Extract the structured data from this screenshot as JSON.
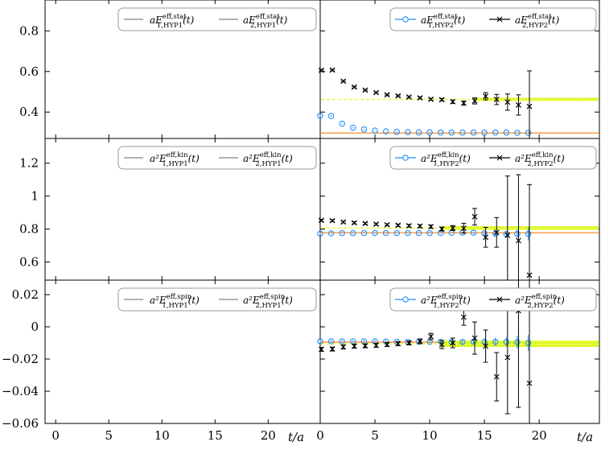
{
  "chart_data": {
    "type": "scatter",
    "shared_x_ticks": [
      0,
      5,
      10,
      15,
      20
    ],
    "xlabel": "t/a",
    "xlim_left": [
      -1,
      24.9
    ],
    "xlim_right": [
      0,
      25.5
    ],
    "rows": [
      {
        "id": "stat",
        "ylim": [
          0.27,
          0.96
        ],
        "yticks": [
          0.4,
          0.6,
          0.8
        ],
        "ytick_labels": [
          "0.4",
          "0.6",
          "0.8"
        ],
        "legend_left": [
          {
            "prefix": "aE",
            "sup": "eff,stat",
            "sub": "1,HYP1",
            "suffix": "(t)"
          },
          {
            "prefix": "aE",
            "sup": "eff,stat",
            "sub": "2,HYP1",
            "suffix": "(t)"
          }
        ],
        "legend_right": [
          {
            "prefix": "aE",
            "sup": "eff,stat",
            "sub": "1,HYP2",
            "suffix": "(t)"
          },
          {
            "prefix": "aE",
            "sup": "eff,stat",
            "sub": "2,HYP2",
            "suffix": "(t)"
          }
        ],
        "fit1": {
          "value": 0.297,
          "x_from": 0
        },
        "fit2": {
          "value": 0.462,
          "band_lo": 0.455,
          "band_hi": 0.47,
          "x_from": 14
        },
        "series1": {
          "x": [
            0,
            1,
            2,
            3,
            4,
            5,
            6,
            7,
            8,
            9,
            10,
            11,
            12,
            13,
            14,
            15,
            16,
            17,
            18,
            19
          ],
          "y": [
            0.382,
            0.381,
            0.343,
            0.323,
            0.315,
            0.309,
            0.305,
            0.303,
            0.301,
            0.3,
            0.3,
            0.299,
            0.299,
            0.299,
            0.299,
            0.299,
            0.299,
            0.299,
            0.298,
            0.298
          ],
          "err": [
            0.004,
            0.004,
            0.003,
            0.003,
            0.003,
            0.002,
            0.002,
            0.002,
            0.002,
            0.002,
            0.002,
            0.002,
            0.002,
            0.002,
            0.002,
            0.002,
            0.002,
            0.002,
            0.002,
            0.003
          ]
        },
        "series2": {
          "x": [
            0,
            1,
            2,
            3,
            4,
            5,
            6,
            7,
            8,
            9,
            10,
            11,
            12,
            13,
            14,
            15,
            16,
            17,
            18,
            19
          ],
          "y": [
            0.606,
            0.607,
            0.552,
            0.523,
            0.508,
            0.496,
            0.485,
            0.48,
            0.474,
            0.47,
            0.463,
            0.461,
            0.451,
            0.444,
            0.455,
            0.478,
            0.462,
            0.449,
            0.435,
            0.428
          ],
          "err": [
            0.004,
            0.004,
            0.004,
            0.004,
            0.004,
            0.004,
            0.004,
            0.004,
            0.005,
            0.005,
            0.005,
            0.006,
            0.008,
            0.01,
            0.015,
            0.018,
            0.025,
            0.04,
            0.05,
            0.175
          ]
        }
      },
      {
        "id": "kin",
        "ylim": [
          0.49,
          1.35
        ],
        "yticks": [
          0.6,
          0.8,
          1.0,
          1.2
        ],
        "ytick_labels": [
          "0.6",
          "0.8",
          "1",
          "1.2"
        ],
        "legend_left": [
          {
            "prefix": "a²E",
            "sup": "eff,kin",
            "sub": "1,HYP1",
            "suffix": "(t)"
          },
          {
            "prefix": "a²E",
            "sup": "eff,kin",
            "sub": "2,HYP1",
            "suffix": "(t)"
          }
        ],
        "legend_right": [
          {
            "prefix": "a²E",
            "sup": "eff,kin",
            "sub": "1,HYP2",
            "suffix": "(t)"
          },
          {
            "prefix": "a²E",
            "sup": "eff,kin",
            "sub": "2,HYP2",
            "suffix": "(t)"
          }
        ],
        "fit1": {
          "value": 0.778,
          "x_from": 0
        },
        "fit2": {
          "value": 0.806,
          "band_lo": 0.795,
          "band_hi": 0.817,
          "x_from": 11
        },
        "series1": {
          "x": [
            0,
            1,
            2,
            3,
            4,
            5,
            6,
            7,
            8,
            9,
            10,
            11,
            12,
            13,
            14,
            15,
            16,
            17,
            18,
            19
          ],
          "y": [
            0.772,
            0.774,
            0.775,
            0.775,
            0.776,
            0.776,
            0.776,
            0.776,
            0.776,
            0.776,
            0.776,
            0.777,
            0.777,
            0.778,
            0.778,
            0.774,
            0.772,
            0.77,
            0.771,
            0.771
          ],
          "err": [
            0.004,
            0.004,
            0.004,
            0.004,
            0.004,
            0.004,
            0.004,
            0.004,
            0.004,
            0.004,
            0.004,
            0.004,
            0.004,
            0.005,
            0.006,
            0.008,
            0.012,
            0.02,
            0.025,
            0.04
          ]
        },
        "series2": {
          "x": [
            0,
            1,
            2,
            3,
            4,
            5,
            6,
            7,
            8,
            9,
            10,
            11,
            12,
            13,
            14,
            15,
            16,
            17,
            18,
            19
          ],
          "y": [
            0.853,
            0.851,
            0.843,
            0.838,
            0.834,
            0.83,
            0.826,
            0.823,
            0.82,
            0.818,
            0.815,
            0.8,
            0.806,
            0.805,
            0.875,
            0.75,
            0.78,
            0.762,
            0.73,
            0.52
          ],
          "err": [
            0.006,
            0.006,
            0.006,
            0.006,
            0.006,
            0.006,
            0.006,
            0.007,
            0.008,
            0.009,
            0.01,
            0.012,
            0.015,
            0.03,
            0.05,
            0.06,
            0.09,
            0.36,
            0.4,
            0.55
          ]
        }
      },
      {
        "id": "spin",
        "ylim": [
          -0.06,
          0.029
        ],
        "yticks": [
          -0.06,
          -0.04,
          -0.02,
          0.0,
          0.02
        ],
        "ytick_labels": [
          "−0.06",
          "−0.04",
          "−0.02",
          "0",
          "0.02"
        ],
        "legend_left": [
          {
            "prefix": "a²E",
            "sup": "eff,spin",
            "sub": "1,HYP1",
            "suffix": "(t)"
          },
          {
            "prefix": "a²E",
            "sup": "eff,spin",
            "sub": "2,HYP1",
            "suffix": "(t)"
          }
        ],
        "legend_right": [
          {
            "prefix": "a²E",
            "sup": "eff,spin",
            "sub": "1,HYP2",
            "suffix": "(t)"
          },
          {
            "prefix": "a²E",
            "sup": "eff,spin",
            "sub": "2,HYP2",
            "suffix": "(t)"
          }
        ],
        "fit1": {
          "value": -0.0095,
          "x_from": 0
        },
        "fit2": {
          "value": -0.0105,
          "band_lo": -0.0125,
          "band_hi": -0.0085,
          "x_from": 11
        },
        "series1": {
          "x": [
            0,
            1,
            2,
            3,
            4,
            5,
            6,
            7,
            8,
            9,
            10,
            11,
            12,
            13,
            14,
            15,
            16,
            17,
            18,
            19
          ],
          "y": [
            -0.009,
            -0.009,
            -0.009,
            -0.009,
            -0.009,
            -0.009,
            -0.0092,
            -0.0093,
            -0.0093,
            -0.0092,
            -0.0093,
            -0.0093,
            -0.0093,
            -0.0094,
            -0.0092,
            -0.0093,
            -0.0093,
            -0.0094,
            -0.0095,
            -0.01
          ],
          "err": [
            0.0008,
            0.0008,
            0.0008,
            0.0008,
            0.0008,
            0.0008,
            0.0008,
            0.0008,
            0.0008,
            0.0008,
            0.0008,
            0.001,
            0.0012,
            0.0015,
            0.0018,
            0.002,
            0.0025,
            0.003,
            0.004,
            0.005
          ]
        },
        "series2": {
          "x": [
            0,
            1,
            2,
            3,
            4,
            5,
            6,
            7,
            8,
            9,
            10,
            11,
            12,
            13,
            14,
            15,
            16,
            17,
            18,
            19
          ],
          "y": [
            -0.014,
            -0.0138,
            -0.0125,
            -0.012,
            -0.0118,
            -0.0115,
            -0.011,
            -0.0105,
            -0.01,
            -0.009,
            -0.006,
            -0.011,
            -0.01,
            0.006,
            -0.007,
            -0.012,
            -0.031,
            -0.019,
            0.01,
            -0.035
          ],
          "err": [
            0.0012,
            0.0012,
            0.0012,
            0.0012,
            0.0012,
            0.0012,
            0.0012,
            0.0012,
            0.0012,
            0.0015,
            0.002,
            0.0025,
            0.003,
            0.005,
            0.01,
            0.01,
            0.015,
            0.035,
            0.06,
            0.09
          ]
        }
      }
    ],
    "colors": {
      "series1": "#1f8fff",
      "series2": "#000000",
      "fit1_line": "#ff7f0e",
      "fit2_band": "#e6ff33",
      "legend_line_left": "#666666",
      "frame": "#000000"
    }
  }
}
